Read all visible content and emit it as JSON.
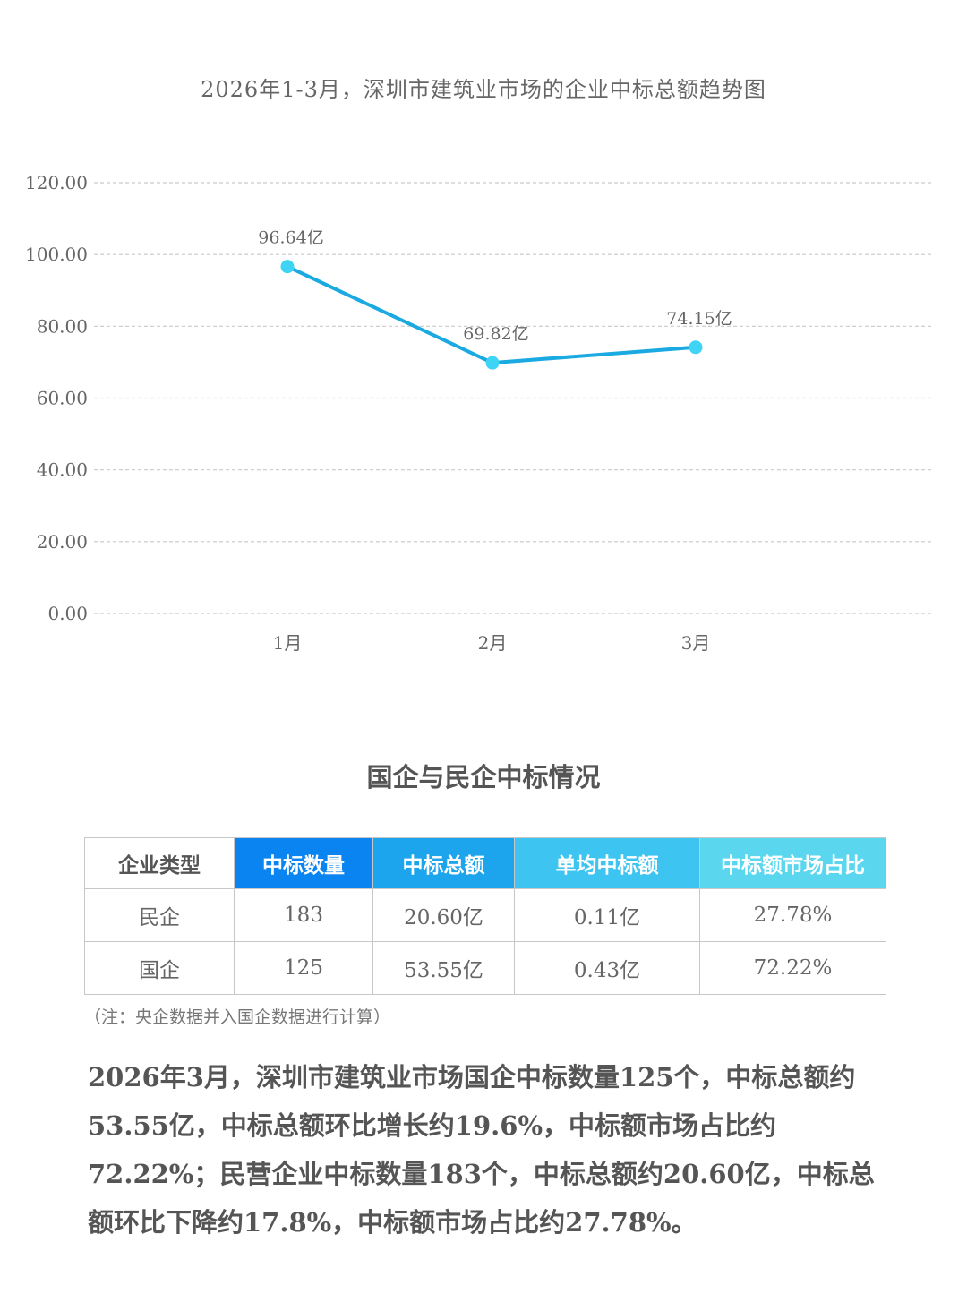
{
  "chart_data": {
    "type": "line",
    "title": "2026年1-3月，深圳市建筑业市场的企业中标总额趋势图",
    "categories": [
      "1月",
      "2月",
      "3月"
    ],
    "series": [
      {
        "values": [
          96.64,
          69.82,
          74.15
        ],
        "labels": [
          "96.64亿",
          "69.82亿",
          "74.15亿"
        ]
      }
    ],
    "yticks": [
      "0.00",
      "20.00",
      "40.00",
      "60.00",
      "80.00",
      "100.00",
      "120.00"
    ],
    "ylim": [
      0,
      120
    ],
    "xlabel": "",
    "ylabel": "",
    "grid": true,
    "line_color": "#1aa9e0",
    "marker_color": "#3fd3f5"
  },
  "section": {
    "title": "国企与民企中标情况"
  },
  "table": {
    "headers": [
      "企业类型",
      "中标数量",
      "中标总额",
      "单均中标额",
      "中标额市场占比"
    ],
    "header_colors": [
      "#ffffff",
      "#0a84f0",
      "#1ca4ec",
      "#3dc4f0",
      "#5ad6ef"
    ],
    "rows": [
      [
        "民企",
        "183",
        "20.60亿",
        "0.11亿",
        "27.78%"
      ],
      [
        "国企",
        "125",
        "53.55亿",
        "0.43亿",
        "72.22%"
      ]
    ]
  },
  "note": "（注：央企数据并入国企数据进行计算）",
  "paragraph": "2026年3月，深圳市建筑业市场国企中标数量125个，中标总额约53.55亿，中标总额环比增长约19.6%，中标额市场占比约72.22%；民营企业中标数量183个，中标总额约20.60亿，中标总额环比下降约17.8%，中标额市场占比约27.78%。"
}
